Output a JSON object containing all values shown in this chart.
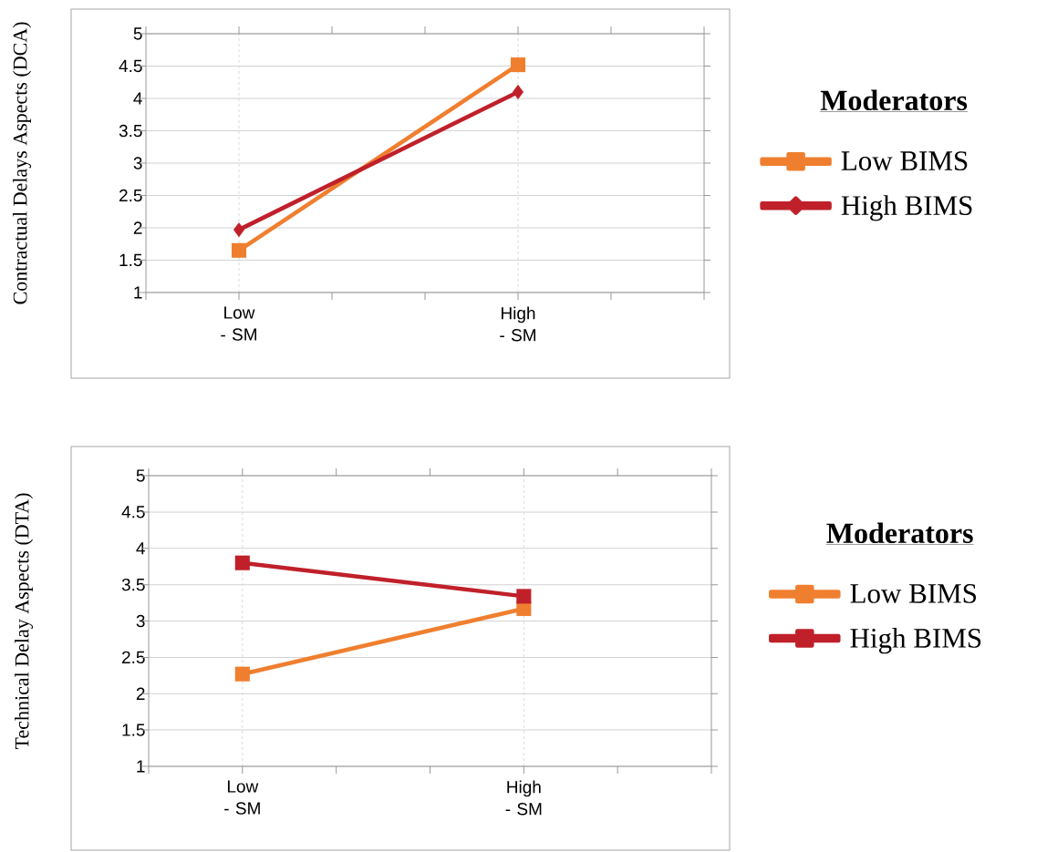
{
  "chart_data": [
    {
      "type": "line",
      "ylabel": "Contractual Delays Aspects (DCA)",
      "legend_title": "Moderators",
      "categories": [
        "Low - SM",
        "High - SM"
      ],
      "ylim": [
        1,
        5
      ],
      "yticks": [
        1,
        1.5,
        2,
        2.5,
        3,
        3.5,
        4,
        4.5,
        5
      ],
      "grid": true,
      "legend": "right",
      "series": [
        {
          "name": "Low BIMS",
          "color": "#ef7f2f",
          "marker": "square",
          "values": [
            1.65,
            4.52
          ]
        },
        {
          "name": "High BIMS",
          "color": "#c0202a",
          "marker": "diamond",
          "values": [
            1.97,
            4.1
          ]
        }
      ]
    },
    {
      "type": "line",
      "ylabel": "Technical Delay Aspects (DTA)",
      "legend_title": "Moderators",
      "categories": [
        "Low - SM",
        "High - SM"
      ],
      "ylim": [
        1,
        5
      ],
      "yticks": [
        1,
        1.5,
        2,
        2.5,
        3,
        3.5,
        4,
        4.5,
        5
      ],
      "grid": true,
      "legend": "right",
      "series": [
        {
          "name": "Low BIMS",
          "color": "#ef7f2f",
          "marker": "square",
          "values": [
            2.27,
            3.17
          ]
        },
        {
          "name": "High BIMS",
          "color": "#c0202a",
          "marker": "square",
          "values": [
            3.8,
            3.34
          ]
        }
      ]
    }
  ]
}
